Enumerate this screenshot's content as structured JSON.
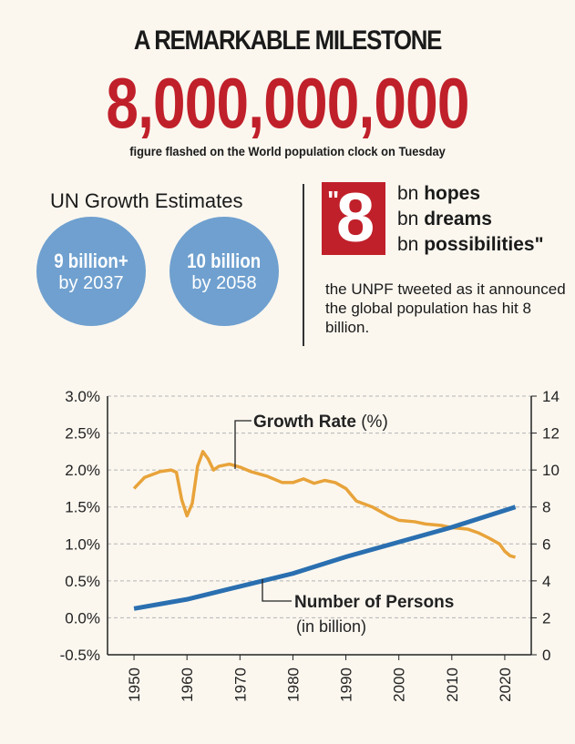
{
  "header": {
    "headline": "A REMARKABLE MILESTONE",
    "big_number": "8,000,000,000",
    "subtitle": "figure flashed on the World population clock on Tuesday"
  },
  "estimates": {
    "title": "UN Growth Estimates",
    "items": [
      {
        "value": "9 billion+",
        "year": "by 2037"
      },
      {
        "value": "10 billion",
        "year": "by 2058"
      }
    ]
  },
  "quote": {
    "open_mark": "\"",
    "number": "8",
    "lines": [
      {
        "prefix": "bn",
        "word": "hopes",
        "suffix": ""
      },
      {
        "prefix": "bn",
        "word": "dreams",
        "suffix": ""
      },
      {
        "prefix": "bn",
        "word": "possibilities",
        "suffix": "\""
      }
    ],
    "caption": "the UNPF tweeted as it announced the global population has hit 8 billion."
  },
  "colors": {
    "accent_red": "#c0202a",
    "bubble_blue": "#6fa0cf",
    "growth_line": "#e8a33a",
    "persons_line": "#2a6fb0"
  },
  "chart_data": {
    "type": "line",
    "left_axis": {
      "ticks": [
        "3.0%",
        "2.5%",
        "2.0%",
        "1.5%",
        "1.0%",
        "0.5%",
        "0.0%",
        "-0.5%"
      ],
      "values": [
        3.0,
        2.5,
        2.0,
        1.5,
        1.0,
        0.5,
        0.0,
        -0.5
      ],
      "range": [
        -0.5,
        3.0
      ]
    },
    "right_axis": {
      "ticks": [
        "14",
        "12",
        "10",
        "8",
        "6",
        "4",
        "2",
        "0"
      ],
      "values": [
        14,
        12,
        10,
        8,
        6,
        4,
        2,
        0
      ],
      "range": [
        0,
        14
      ]
    },
    "x_ticks": [
      "1950",
      "1960",
      "1970",
      "1980",
      "1990",
      "2000",
      "2010",
      "2020"
    ],
    "x_values": [
      1950,
      1960,
      1970,
      1980,
      1990,
      2000,
      2010,
      2020
    ],
    "grid": true,
    "series": [
      {
        "name": "Growth Rate (%)",
        "label": "Growth Rate",
        "label_unit": "(%)",
        "axis": "left",
        "x": [
          1950,
          1952,
          1955,
          1957,
          1958,
          1959,
          1960,
          1961,
          1962,
          1963,
          1964,
          1965,
          1966,
          1968,
          1970,
          1972,
          1975,
          1978,
          1980,
          1982,
          1984,
          1986,
          1988,
          1990,
          1992,
          1995,
          1998,
          2000,
          2003,
          2005,
          2008,
          2010,
          2013,
          2015,
          2017,
          2019,
          2020,
          2021,
          2022
        ],
        "values": [
          1.75,
          1.9,
          1.98,
          2.0,
          1.97,
          1.6,
          1.38,
          1.55,
          2.05,
          2.25,
          2.15,
          2.0,
          2.05,
          2.08,
          2.04,
          1.98,
          1.92,
          1.83,
          1.83,
          1.88,
          1.82,
          1.86,
          1.83,
          1.75,
          1.58,
          1.5,
          1.38,
          1.32,
          1.3,
          1.27,
          1.25,
          1.22,
          1.2,
          1.15,
          1.08,
          1.0,
          0.9,
          0.84,
          0.82
        ]
      },
      {
        "name": "Number of Persons (in billion)",
        "label": "Number of Persons",
        "label_unit": "(in billion)",
        "axis": "right",
        "x": [
          1950,
          1960,
          1970,
          1980,
          1990,
          2000,
          2010,
          2022
        ],
        "values": [
          2.5,
          3.0,
          3.7,
          4.4,
          5.3,
          6.1,
          6.9,
          8.0
        ]
      }
    ]
  }
}
